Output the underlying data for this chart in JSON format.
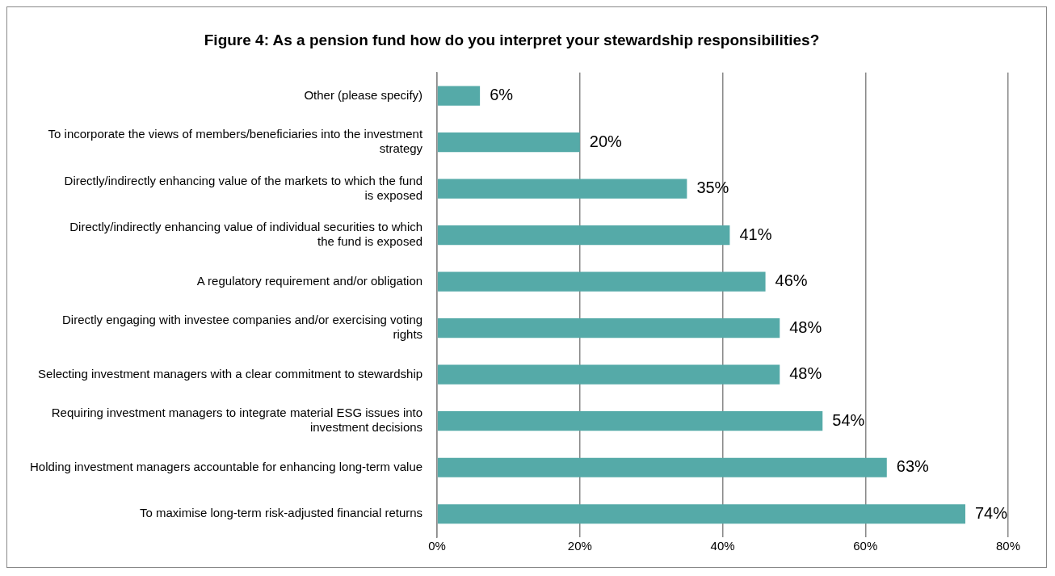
{
  "chart_data": {
    "type": "bar",
    "orientation": "horizontal",
    "title": "Figure 4: As a pension fund how do you interpret your stewardship responsibilities?",
    "categories": [
      "Other (please specify)",
      "To incorporate the views of members/beneficiaries into the investment strategy",
      "Directly/indirectly enhancing value of the markets to which the fund is exposed",
      "Directly/indirectly enhancing value of individual securities to which the fund is exposed",
      "A regulatory requirement and/or obligation",
      "Directly engaging with investee companies and/or exercising voting rights",
      "Selecting investment managers with a clear commitment to stewardship",
      "Requiring investment managers to integrate material ESG issues into investment decisions",
      "Holding investment managers accountable for enhancing long-term value",
      "To maximise long-term risk-adjusted financial returns"
    ],
    "values": [
      6,
      20,
      35,
      41,
      46,
      48,
      48,
      54,
      63,
      74
    ],
    "value_labels": [
      "6%",
      "20%",
      "35%",
      "41%",
      "46%",
      "48%",
      "48%",
      "54%",
      "63%",
      "74%"
    ],
    "color": "#55aaa8",
    "xlim": [
      0,
      80
    ],
    "xticks": [
      {
        "value": 0,
        "label": "0%"
      },
      {
        "value": 20,
        "label": "20%"
      },
      {
        "value": 40,
        "label": "40%"
      },
      {
        "value": 60,
        "label": "60%"
      },
      {
        "value": 80,
        "label": "80%"
      }
    ],
    "grid": "x",
    "legend": false
  }
}
